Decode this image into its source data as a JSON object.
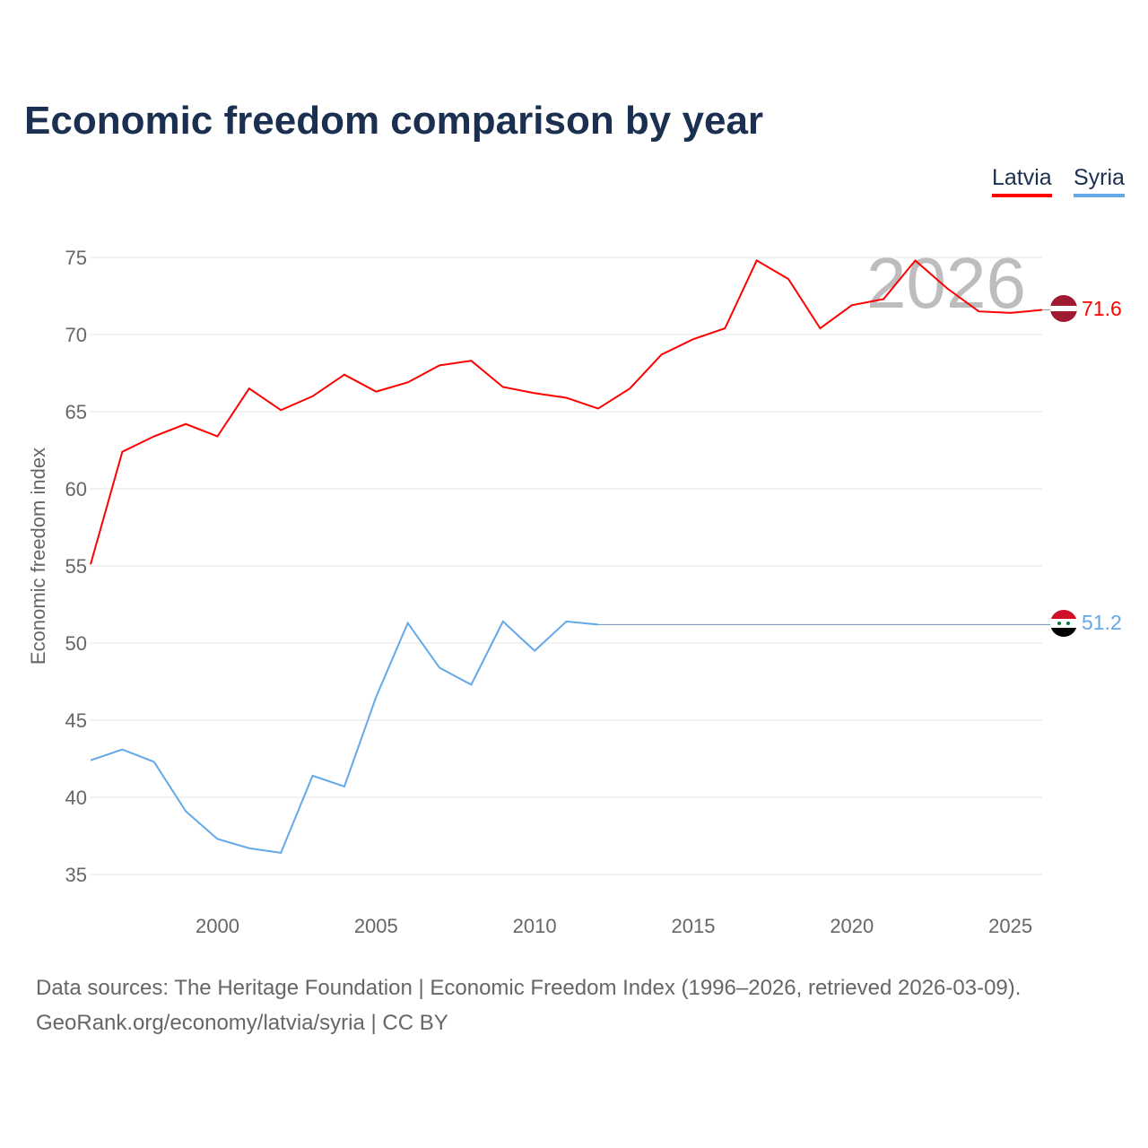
{
  "chart_data": {
    "type": "line",
    "title": "Economic freedom comparison by year",
    "ylabel": "Economic freedom index",
    "xlabel": "",
    "ylim": [
      33,
      77
    ],
    "xlim": [
      1996,
      2026
    ],
    "yticks": [
      35,
      40,
      45,
      50,
      55,
      60,
      65,
      70,
      75
    ],
    "xticks": [
      2000,
      2005,
      2010,
      2015,
      2020,
      2025
    ],
    "grid": true,
    "legend_position": "top-right",
    "year_watermark": "2026",
    "series": [
      {
        "name": "Latvia",
        "color": "#ff0000",
        "end_label": "71.6",
        "x": [
          1996,
          1997,
          1998,
          1999,
          2000,
          2001,
          2002,
          2003,
          2004,
          2005,
          2006,
          2007,
          2008,
          2009,
          2010,
          2011,
          2012,
          2013,
          2014,
          2015,
          2016,
          2017,
          2018,
          2019,
          2020,
          2021,
          2022,
          2023,
          2024,
          2025,
          2026
        ],
        "values": [
          55.1,
          62.4,
          63.4,
          64.2,
          63.4,
          66.5,
          65.1,
          66.0,
          67.4,
          66.3,
          66.9,
          68.0,
          68.3,
          66.6,
          66.2,
          65.9,
          65.2,
          66.5,
          68.7,
          69.7,
          70.4,
          74.8,
          73.6,
          70.4,
          71.9,
          72.3,
          74.8,
          73.0,
          71.5,
          71.4,
          71.6
        ]
      },
      {
        "name": "Syria",
        "color": "#63a8e8",
        "end_label": "51.2",
        "x": [
          1996,
          1997,
          1998,
          1999,
          2000,
          2001,
          2002,
          2003,
          2004,
          2005,
          2006,
          2007,
          2008,
          2009,
          2010,
          2011,
          2012
        ],
        "values": [
          42.4,
          43.1,
          42.3,
          39.1,
          37.3,
          36.7,
          36.4,
          41.4,
          40.7,
          46.5,
          51.3,
          48.4,
          47.3,
          51.4,
          49.5,
          51.4,
          51.2
        ]
      }
    ]
  },
  "source_line1": "Data sources: The Heritage Foundation | Economic Freedom Index (1996–2026, retrieved 2026-03-09).",
  "source_line2": "GeoRank.org/economy/latvia/syria | CC BY"
}
